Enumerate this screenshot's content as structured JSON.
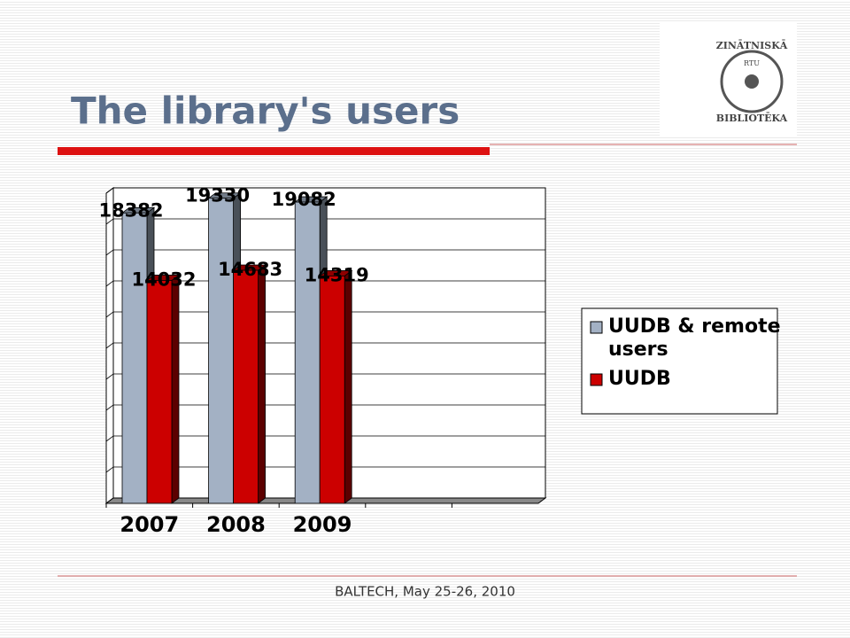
{
  "header": {
    "title": "The library's users",
    "logo": {
      "top": "ZINĀTNISKĀ",
      "middle": "RTU",
      "bottom": "BIBLIOTĒKA"
    }
  },
  "chart_data": {
    "type": "bar",
    "categories": [
      "2007",
      "2008",
      "2009",
      null,
      null
    ],
    "series": [
      {
        "name": "UUDB & remote users",
        "color": "#a3b1c4",
        "values": [
          18382,
          19330,
          19082,
          null,
          null
        ]
      },
      {
        "name": "UUDB",
        "color": "#cc0000",
        "values": [
          14032,
          14683,
          14319,
          null,
          null
        ]
      }
    ],
    "ylim": [
      0,
      20000
    ],
    "grid": true,
    "legend": "right"
  },
  "footer": {
    "text": "BALTECH,  May 25-26, 2010"
  }
}
